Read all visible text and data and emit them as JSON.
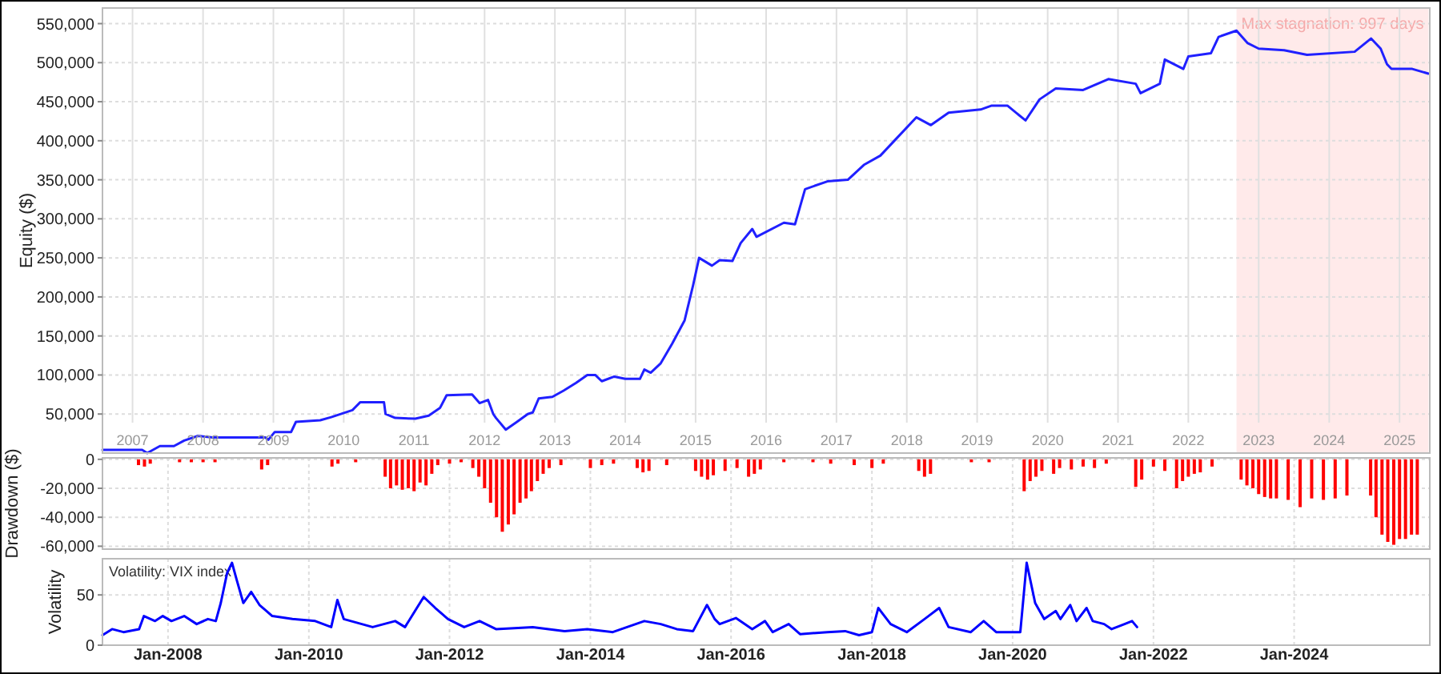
{
  "chart_data": [
    {
      "type": "line",
      "ylabel": "Equity ($)",
      "xlim": [
        "2007-01-26",
        "2025-12-05"
      ],
      "ylim": [
        0,
        570000
      ],
      "xticks": [
        {
          "value": "2007-07-01",
          "label": "2007"
        },
        {
          "value": "2008-07-01",
          "label": "2008"
        },
        {
          "value": "2009-07-01",
          "label": "2009"
        },
        {
          "value": "2010-07-01",
          "label": "2010"
        },
        {
          "value": "2011-07-01",
          "label": "2011"
        },
        {
          "value": "2012-07-01",
          "label": "2012"
        },
        {
          "value": "2013-07-01",
          "label": "2013"
        },
        {
          "value": "2014-07-01",
          "label": "2014"
        },
        {
          "value": "2015-07-01",
          "label": "2015"
        },
        {
          "value": "2016-07-01",
          "label": "2016"
        },
        {
          "value": "2017-07-01",
          "label": "2017"
        },
        {
          "value": "2018-07-01",
          "label": "2018"
        },
        {
          "value": "2019-07-01",
          "label": "2019"
        },
        {
          "value": "2020-07-01",
          "label": "2020"
        },
        {
          "value": "2021-07-01",
          "label": "2021"
        },
        {
          "value": "2022-07-01",
          "label": "2022"
        },
        {
          "value": "2023-07-01",
          "label": "2023"
        },
        {
          "value": "2024-07-01",
          "label": "2024"
        },
        {
          "value": "2025-07-01",
          "label": "2025"
        }
      ],
      "yticks": [
        {
          "value": 50000,
          "label": "50,000"
        },
        {
          "value": 100000,
          "label": "100,000"
        },
        {
          "value": 150000,
          "label": "150,000"
        },
        {
          "value": 200000,
          "label": "200,000"
        },
        {
          "value": 250000,
          "label": "250,000"
        },
        {
          "value": 300000,
          "label": "300,000"
        },
        {
          "value": 350000,
          "label": "350,000"
        },
        {
          "value": 400000,
          "label": "400,000"
        },
        {
          "value": 450000,
          "label": "450,000"
        },
        {
          "value": 500000,
          "label": "500,000"
        },
        {
          "value": 550000,
          "label": "550,000"
        }
      ],
      "grid": true,
      "bands": [
        {
          "axis": "x",
          "from": "2023-03-08",
          "to": "2025-11-28",
          "label": "Max stagnation: 997 days",
          "color": "#ffeaea"
        }
      ],
      "series": [
        {
          "color": "#2020ff",
          "x": [
            "2007-01-26",
            "2007-08-20",
            "2007-09-15",
            "2007-11-20",
            "2008-02-01",
            "2008-03-25",
            "2008-06-05",
            "2008-08-20",
            "2009-05-20",
            "2009-06-05",
            "2009-07-08",
            "2009-10-01",
            "2009-10-26",
            "2010-03-01",
            "2010-04-27",
            "2010-08-15",
            "2010-09-24",
            "2011-01-26",
            "2011-02-03",
            "2011-03-25",
            "2011-07-08",
            "2011-09-15",
            "2011-11-13",
            "2011-12-17",
            "2012-04-27",
            "2012-06-05",
            "2012-07-19",
            "2012-08-15",
            "2012-08-29",
            "2012-10-19",
            "2012-12-16",
            "2013-02-10",
            "2013-03-08",
            "2013-04-08",
            "2013-06-18",
            "2013-08-15",
            "2013-10-19",
            "2013-12-16",
            "2014-01-26",
            "2014-03-01",
            "2014-05-05",
            "2014-07-01",
            "2014-09-15",
            "2014-10-08",
            "2014-11-10",
            "2015-01-01",
            "2015-03-01",
            "2015-05-05",
            "2015-06-18",
            "2015-07-19",
            "2015-09-24",
            "2015-11-03",
            "2016-01-08",
            "2016-02-20",
            "2016-04-20",
            "2016-05-12",
            "2016-10-01",
            "2016-11-28",
            "2017-01-19",
            "2017-05-15",
            "2017-08-29",
            "2017-11-20",
            "2018-02-14",
            "2018-05-05",
            "2018-08-20",
            "2018-11-03",
            "2019-02-03",
            "2019-07-19",
            "2019-09-15",
            "2019-12-05",
            "2020-03-08",
            "2020-05-20",
            "2020-08-12",
            "2021-01-01",
            "2021-05-12",
            "2021-10-01",
            "2021-10-26",
            "2022-02-03",
            "2022-03-01",
            "2022-06-05",
            "2022-07-01",
            "2022-10-26",
            "2022-12-05",
            "2023-03-08",
            "2023-05-05",
            "2023-07-01",
            "2023-11-10",
            "2024-03-08",
            "2024-11-10",
            "2025-02-03",
            "2025-03-25",
            "2025-04-27",
            "2025-05-20",
            "2025-09-05",
            "2025-11-28"
          ],
          "values": [
            4000,
            4000,
            0,
            9000,
            9000,
            16000,
            22000,
            20000,
            20000,
            17000,
            27000,
            27000,
            40000,
            42000,
            46000,
            55000,
            65000,
            65000,
            50000,
            45000,
            44000,
            48000,
            58000,
            74000,
            75000,
            64000,
            68000,
            50000,
            45000,
            30000,
            40000,
            50000,
            52000,
            70000,
            72000,
            80000,
            90000,
            100000,
            100000,
            92000,
            98000,
            95000,
            95000,
            107000,
            103000,
            115000,
            140000,
            170000,
            215000,
            250000,
            240000,
            247000,
            246000,
            269000,
            287000,
            277000,
            295000,
            293000,
            338000,
            348000,
            350000,
            369000,
            381000,
            402000,
            430000,
            420000,
            436000,
            440000,
            445000,
            445000,
            426000,
            453000,
            467000,
            465000,
            479000,
            473000,
            461000,
            473000,
            504000,
            492000,
            508000,
            512000,
            533000,
            541000,
            525000,
            518000,
            516000,
            510000,
            514000,
            531000,
            518000,
            498000,
            492000,
            492000,
            486000
          ]
        }
      ]
    },
    {
      "type": "bar",
      "ylabel": "Drawdown ($)",
      "xlim": [
        "2007-01-26",
        "2025-12-05"
      ],
      "ylim": [
        -62000,
        1000
      ],
      "xticks": [
        {
          "value": "2008-01-01",
          "label": null
        },
        {
          "value": "2010-01-01",
          "label": null
        },
        {
          "value": "2012-01-01",
          "label": null
        },
        {
          "value": "2014-01-01",
          "label": null
        },
        {
          "value": "2016-01-01",
          "label": null
        },
        {
          "value": "2018-01-01",
          "label": null
        },
        {
          "value": "2020-01-01",
          "label": null
        },
        {
          "value": "2022-01-01",
          "label": null
        },
        {
          "value": "2024-01-01",
          "label": null
        }
      ],
      "yticks": [
        {
          "value": 0,
          "label": "0"
        },
        {
          "value": -20000,
          "label": "-20,000"
        },
        {
          "value": -40000,
          "label": "-40,000"
        },
        {
          "value": -60000,
          "label": "-60,000"
        }
      ],
      "grid": true,
      "tick_labels": "y",
      "series": [
        {
          "color": "#ff0000",
          "x": [
            "2007-08-01",
            "2007-09-01",
            "2007-10-01",
            "2008-03-01",
            "2008-05-01",
            "2008-07-01",
            "2008-09-01",
            "2009-05-01",
            "2009-06-01",
            "2010-05-01",
            "2010-06-01",
            "2010-09-01",
            "2011-02-01",
            "2011-03-01",
            "2011-04-01",
            "2011-05-01",
            "2011-06-01",
            "2011-07-01",
            "2011-08-01",
            "2011-09-01",
            "2011-10-01",
            "2011-11-01",
            "2012-01-01",
            "2012-03-01",
            "2012-05-01",
            "2012-06-01",
            "2012-07-01",
            "2012-08-01",
            "2012-09-01",
            "2012-10-01",
            "2012-11-01",
            "2012-12-01",
            "2013-01-01",
            "2013-02-01",
            "2013-03-01",
            "2013-04-01",
            "2013-05-01",
            "2013-06-01",
            "2013-08-01",
            "2014-01-01",
            "2014-03-01",
            "2014-05-01",
            "2014-09-01",
            "2014-10-01",
            "2014-11-01",
            "2015-02-01",
            "2015-07-01",
            "2015-08-01",
            "2015-09-01",
            "2015-10-01",
            "2015-12-01",
            "2016-02-01",
            "2016-04-01",
            "2016-05-01",
            "2016-06-01",
            "2016-10-01",
            "2017-03-01",
            "2017-06-01",
            "2017-10-01",
            "2018-01-01",
            "2018-03-01",
            "2018-09-01",
            "2018-10-01",
            "2018-11-01",
            "2019-06-01",
            "2019-09-01",
            "2020-03-01",
            "2020-04-01",
            "2020-05-01",
            "2020-06-01",
            "2020-08-01",
            "2020-09-01",
            "2020-11-01",
            "2021-01-01",
            "2021-03-01",
            "2021-05-01",
            "2021-10-01",
            "2021-11-01",
            "2022-01-01",
            "2022-03-01",
            "2022-05-01",
            "2022-06-01",
            "2022-07-01",
            "2022-08-01",
            "2022-09-01",
            "2022-11-01",
            "2023-04-01",
            "2023-05-01",
            "2023-06-01",
            "2023-07-01",
            "2023-08-01",
            "2023-09-01",
            "2023-10-01",
            "2023-12-01",
            "2024-02-01",
            "2024-04-01",
            "2024-06-01",
            "2024-08-01",
            "2024-10-01",
            "2025-02-01",
            "2025-03-01",
            "2025-04-01",
            "2025-05-01",
            "2025-06-01",
            "2025-07-01",
            "2025-08-01",
            "2025-09-01",
            "2025-10-01"
          ],
          "values": [
            -4000,
            -5000,
            -3000,
            -2000,
            -2000,
            -2000,
            -2000,
            -7000,
            -4000,
            -5000,
            -3000,
            -2000,
            -12000,
            -20000,
            -18000,
            -21000,
            -20000,
            -22000,
            -16000,
            -18000,
            -10000,
            -4000,
            -3000,
            -2000,
            -6000,
            -12000,
            -20000,
            -30000,
            -40000,
            -50000,
            -45000,
            -38000,
            -30000,
            -27000,
            -22000,
            -15000,
            -10000,
            -6000,
            -4000,
            -6000,
            -4000,
            -3000,
            -6000,
            -9000,
            -8000,
            -4000,
            -8000,
            -12000,
            -14000,
            -11000,
            -8000,
            -6000,
            -12000,
            -10000,
            -7000,
            -2000,
            -2000,
            -3000,
            -4000,
            -6000,
            -3000,
            -8000,
            -12000,
            -10000,
            -2000,
            -2000,
            -22000,
            -15000,
            -12000,
            -8000,
            -10000,
            -6000,
            -7000,
            -5000,
            -6000,
            -3000,
            -19000,
            -14000,
            -5000,
            -8000,
            -20000,
            -15000,
            -12000,
            -10000,
            -9000,
            -5000,
            -14000,
            -18000,
            -20000,
            -24000,
            -26000,
            -27000,
            -27000,
            -28000,
            -33000,
            -27000,
            -28000,
            -27000,
            -25000,
            -25000,
            -40000,
            -52000,
            -57000,
            -59000,
            -55000,
            -55000,
            -52000,
            -52000
          ]
        }
      ]
    },
    {
      "type": "line",
      "title": "Volatility: VIX index",
      "ylabel": "Volatility",
      "xlim": [
        "2007-01-26",
        "2025-12-05"
      ],
      "ylim": [
        0,
        86
      ],
      "xticks": [
        {
          "value": "2008-01-01",
          "label": "Jan-2008"
        },
        {
          "value": "2010-01-01",
          "label": "Jan-2010"
        },
        {
          "value": "2012-01-01",
          "label": "Jan-2012"
        },
        {
          "value": "2014-01-01",
          "label": "Jan-2014"
        },
        {
          "value": "2016-01-01",
          "label": "Jan-2016"
        },
        {
          "value": "2018-01-01",
          "label": "Jan-2018"
        },
        {
          "value": "2020-01-01",
          "label": "Jan-2020"
        },
        {
          "value": "2022-01-01",
          "label": "Jan-2022"
        },
        {
          "value": "2024-01-01",
          "label": "Jan-2024"
        }
      ],
      "yticks": [
        {
          "value": 0,
          "label": "0"
        },
        {
          "value": 50,
          "label": "50"
        }
      ],
      "grid": true,
      "series": [
        {
          "color": "#0000ff",
          "x": [
            "2007-01-26",
            "2007-03-17",
            "2007-05-15",
            "2007-08-04",
            "2007-08-29",
            "2007-10-26",
            "2007-12-05",
            "2008-01-19",
            "2008-03-25",
            "2008-05-29",
            "2008-07-26",
            "2008-09-05",
            "2008-10-01",
            "2008-11-03",
            "2008-11-28",
            "2008-12-24",
            "2009-01-26",
            "2009-03-08",
            "2009-04-20",
            "2009-06-25",
            "2009-10-08",
            "2010-02-03",
            "2010-04-27",
            "2010-05-29",
            "2010-07-01",
            "2010-11-28",
            "2011-03-25",
            "2011-05-15",
            "2011-08-20",
            "2011-10-19",
            "2011-12-24",
            "2012-03-17",
            "2012-06-05",
            "2012-08-29",
            "2013-03-08",
            "2013-08-20",
            "2013-12-16",
            "2014-04-27",
            "2014-10-08",
            "2015-01-01",
            "2015-03-25",
            "2015-06-18",
            "2015-08-29",
            "2015-10-08",
            "2015-11-03",
            "2016-01-26",
            "2016-04-20",
            "2016-06-25",
            "2016-08-04",
            "2016-10-26",
            "2016-12-24",
            "2017-05-15",
            "2017-08-15",
            "2017-10-26",
            "2018-01-01",
            "2018-02-03",
            "2018-04-08",
            "2018-07-01",
            "2018-10-01",
            "2018-12-16",
            "2019-02-03",
            "2019-05-29",
            "2019-08-04",
            "2019-10-08",
            "2020-02-10",
            "2020-03-14",
            "2020-04-27",
            "2020-06-13",
            "2020-08-12",
            "2020-09-05",
            "2020-10-26",
            "2020-11-28",
            "2021-01-19",
            "2021-02-20",
            "2021-04-20",
            "2021-05-29",
            "2021-08-04",
            "2021-09-12",
            "2021-10-08"
          ],
          "values": [
            10,
            16,
            13,
            16,
            29,
            24,
            29,
            24,
            29,
            21,
            26,
            24,
            42,
            72,
            82,
            64,
            42,
            53,
            40,
            29,
            26,
            24,
            18,
            45,
            26,
            18,
            24,
            18,
            48,
            37,
            26,
            18,
            24,
            16,
            18,
            14,
            16,
            13,
            24,
            21,
            16,
            14,
            40,
            26,
            21,
            27,
            16,
            24,
            13,
            21,
            11,
            13,
            14,
            10,
            13,
            37,
            21,
            13,
            26,
            37,
            18,
            13,
            24,
            13,
            13,
            82,
            42,
            26,
            34,
            26,
            40,
            24,
            37,
            24,
            21,
            16,
            21,
            24,
            18
          ]
        }
      ]
    }
  ]
}
